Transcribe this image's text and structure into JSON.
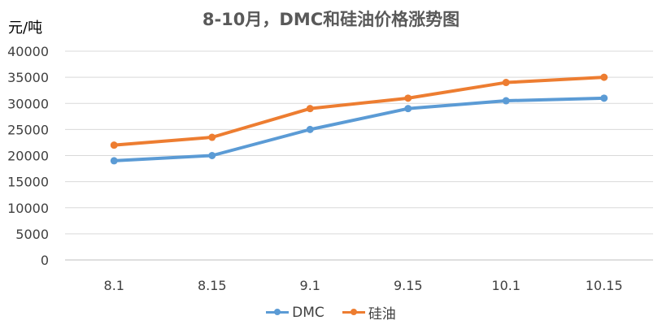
{
  "chart_data": {
    "type": "line",
    "title": "8-10月，DMC和硅油价格涨势图",
    "unit_label": "元/吨",
    "categories": [
      "8.1",
      "8.15",
      "9.1",
      "9.15",
      "10.1",
      "10.15"
    ],
    "y_ticks": [
      "0",
      "5000",
      "10000",
      "15000",
      "20000",
      "25000",
      "30000",
      "35000",
      "40000"
    ],
    "ylim": [
      0,
      40000
    ],
    "grid": true,
    "legend_position": "bottom",
    "series": [
      {
        "name": "DMC",
        "values": [
          19000,
          20000,
          25000,
          29000,
          30500,
          31000
        ],
        "color": "#5B9BD5"
      },
      {
        "name": "硅油",
        "values": [
          22000,
          23500,
          29000,
          31000,
          34000,
          35000
        ],
        "color": "#ED7D31"
      }
    ]
  }
}
